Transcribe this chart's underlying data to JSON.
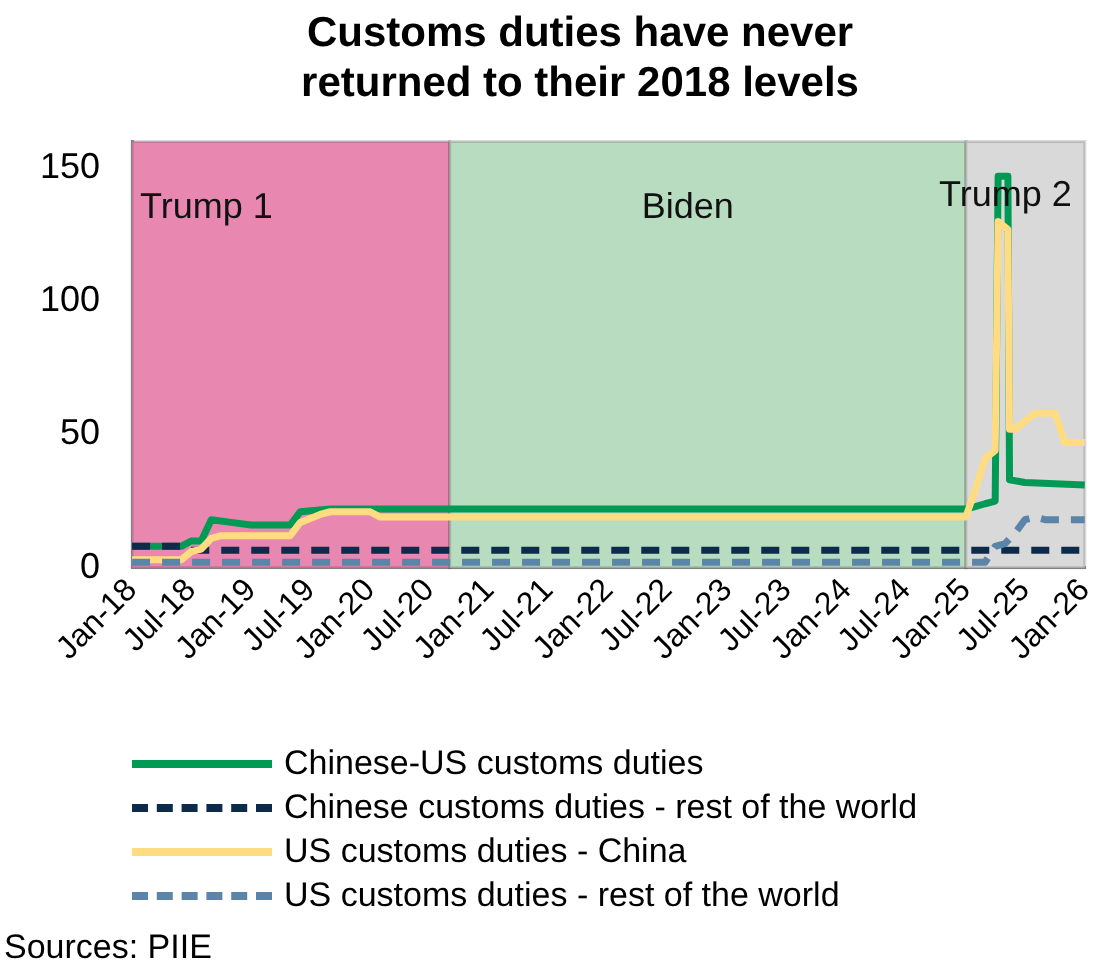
{
  "chart_data": {
    "type": "line",
    "title": "Customs duties have never returned to their 2018 levels",
    "xlim": [
      "2018-01",
      "2026-01"
    ],
    "xticks": [
      {
        "value": "2018-01",
        "label": "Jan-18"
      },
      {
        "value": "2018-07",
        "label": "Jul-18"
      },
      {
        "value": "2019-01",
        "label": "Jan-19"
      },
      {
        "value": "2019-07",
        "label": "Jul-19"
      },
      {
        "value": "2020-01",
        "label": "Jan-20"
      },
      {
        "value": "2020-07",
        "label": "Jul-20"
      },
      {
        "value": "2021-01",
        "label": "Jan-21"
      },
      {
        "value": "2021-07",
        "label": "Jul-21"
      },
      {
        "value": "2022-01",
        "label": "Jan-22"
      },
      {
        "value": "2022-07",
        "label": "Jul-22"
      },
      {
        "value": "2023-01",
        "label": "Jan-23"
      },
      {
        "value": "2023-07",
        "label": "Jul-23"
      },
      {
        "value": "2024-01",
        "label": "Jan-24"
      },
      {
        "value": "2024-07",
        "label": "Jul-24"
      },
      {
        "value": "2025-01",
        "label": "Jan-25"
      },
      {
        "value": "2025-07",
        "label": "Jul-25"
      },
      {
        "value": "2026-01",
        "label": "Jan-26"
      }
    ],
    "ylim": [
      0,
      160
    ],
    "yticks": [
      0,
      50,
      100,
      150
    ],
    "grid": false,
    "legend": "bottom",
    "marker": "none",
    "bands": [
      {
        "axis": "x",
        "from": "2018-01",
        "to": "2020-09",
        "label": "Trump 1",
        "color": "#e888b0"
      },
      {
        "axis": "x",
        "from": "2020-09",
        "to": "2025-01",
        "label": "Biden",
        "color": "#b8dcc0"
      },
      {
        "axis": "x",
        "from": "2025-01",
        "to": "2026-01",
        "label": "Trump 2",
        "color": "#d9d9d9"
      }
    ],
    "series": [
      {
        "name": "Chinese-US customs duties",
        "color": "#009a55",
        "line_style": "solid",
        "x": [
          "2018-01",
          "2018-06",
          "2018-07",
          "2018-08",
          "2018-09",
          "2018-11",
          "2019-01",
          "2019-05",
          "2019-06",
          "2019-09",
          "2020-01",
          "2025-01",
          "2025-02",
          "2025-03",
          "2025-04",
          "2025-04-10",
          "2025-05-10",
          "2025-05-15",
          "2025-07",
          "2026-01"
        ],
        "values": [
          8,
          8,
          10,
          10,
          18,
          17,
          16,
          16,
          21,
          22,
          22,
          22,
          23,
          24,
          25,
          147,
          147,
          33,
          32,
          31
        ]
      },
      {
        "name": "Chinese customs duties - rest of the world",
        "color": "#0c2a4a",
        "line_style": "dashed",
        "x": [
          "2018-01",
          "2018-06",
          "2018-07",
          "2026-01"
        ],
        "values": [
          8,
          8,
          6.5,
          6.5
        ]
      },
      {
        "name": "US customs duties - China",
        "color": "#ffdc82",
        "line_style": "solid",
        "x": [
          "2018-01",
          "2018-06",
          "2018-07",
          "2018-08",
          "2018-09",
          "2018-10",
          "2019-05",
          "2019-06",
          "2019-08",
          "2019-09",
          "2020-01",
          "2020-02",
          "2025-01",
          "2025-02",
          "2025-03",
          "2025-04",
          "2025-04-10",
          "2025-05-10",
          "2025-05-15",
          "2025-06",
          "2025-07",
          "2025-08",
          "2025-10",
          "2025-11",
          "2026-01"
        ],
        "values": [
          3,
          3,
          6,
          7,
          11,
          12,
          12,
          17,
          20,
          21,
          21,
          19,
          19,
          30,
          41,
          44,
          130,
          127,
          52,
          52,
          55,
          58,
          58,
          47,
          47
        ]
      },
      {
        "name": "US customs duties - rest of the world",
        "color": "#5b85a8",
        "line_style": "dashed",
        "x": [
          "2018-01",
          "2025-03",
          "2025-04",
          "2025-05",
          "2025-06",
          "2025-07",
          "2025-08",
          "2025-09",
          "2026-01"
        ],
        "values": [
          2,
          2,
          8,
          9,
          13,
          18,
          19,
          18,
          18
        ]
      }
    ],
    "annotations": [
      "Sources: PIIE"
    ]
  }
}
